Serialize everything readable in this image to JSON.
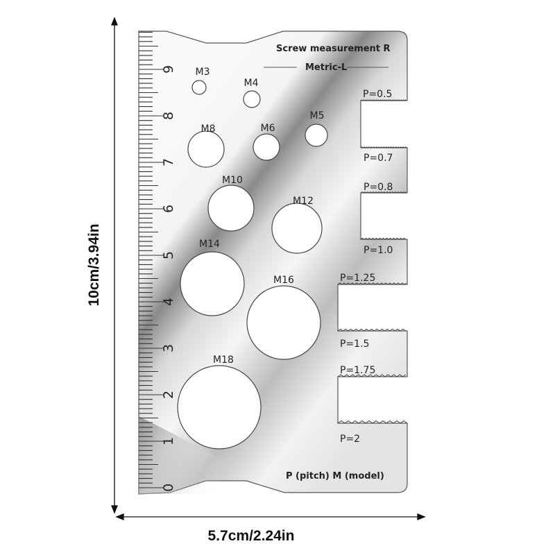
{
  "card": {
    "title": "Screw measurement  R",
    "subtitle": "Metric-L",
    "legend": "P (pitch) M (model)",
    "ruler_labels": [
      "0",
      "1",
      "2",
      "3",
      "4",
      "5",
      "6",
      "7",
      "8",
      "9"
    ],
    "holes": [
      {
        "label": "M3"
      },
      {
        "label": "M4"
      },
      {
        "label": "M5"
      },
      {
        "label": "M8"
      },
      {
        "label": "M6"
      },
      {
        "label": "M10"
      },
      {
        "label": "M12"
      },
      {
        "label": "M14"
      },
      {
        "label": "M16"
      },
      {
        "label": "M18"
      }
    ],
    "pitches": [
      {
        "label": "P=0.5"
      },
      {
        "label": "P=0.7"
      },
      {
        "label": "P=0.8"
      },
      {
        "label": "P=1.0"
      },
      {
        "label": "P=1.25"
      },
      {
        "label": "P=1.5"
      },
      {
        "label": "P=1.75"
      },
      {
        "label": "P=2"
      }
    ]
  },
  "dimensions": {
    "height": "10cm/3.94in",
    "width": "5.7cm/2.24in"
  }
}
